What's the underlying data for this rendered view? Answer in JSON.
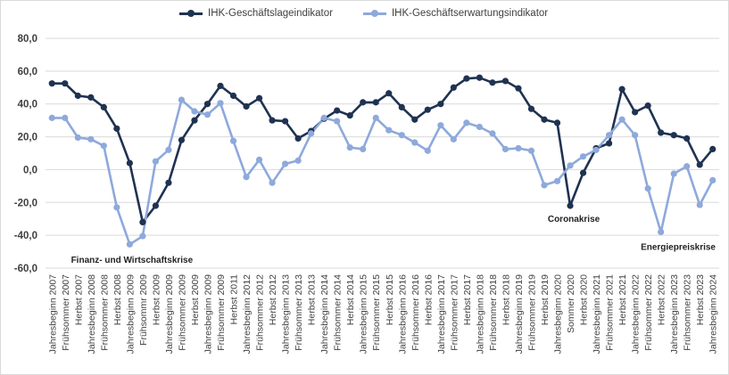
{
  "chart_data": {
    "type": "line",
    "categories": [
      "Jahresbeginn 2007",
      "Frühsommer 2007",
      "Herbst 2007",
      "Jahresbeginn 2008",
      "Frühsommer 2008",
      "Herbst 2008",
      "Jahresbeginn 2009",
      "Frühsommr 2009",
      "Herbst 2009",
      "Jahresbeginn 2009",
      "Frühsommer 2009",
      "Herbst 2009",
      "Jahresbeginn 2009",
      "Frühsommer 2009",
      "Herbst 2011",
      "Jahresbeginn 2012",
      "Frühsommer 2012",
      "Herbst 2012",
      "Jahresbeginn 2013",
      "Frühsommer 2013",
      "Herbst 2013",
      "Jahresbeginn 2014",
      "Frühsommer 2014",
      "Herbst 2014",
      "Jahresbeginn 2015",
      "Frühsommer 2015",
      "Herbst 2015",
      "Jahresbeginn 2016",
      "Frühsommer 2016",
      "Herbst 2016",
      "Jahresbeginn 2017",
      "Frühsommer 2017",
      "Herbst 2017",
      "Jahresbeginn 2018",
      "Frühsommer 2018",
      "Herbst 2018",
      "Jahresbeginn 2019",
      "Frühsommer 2019",
      "Herbst 2019",
      "Jahresbeginn 2020",
      "Sommer 2020",
      "Herbst 2020",
      "Jahresbeginn 2021",
      "Frühsommer 2021",
      "Herbst 2021",
      "Jahresbeginn 2022",
      "Frühsommer 2022",
      "Herbst 2022",
      "Jahresbeginn 2023",
      "Frühsommer 2023",
      "Herbst 2023",
      "Jahresbeginn 2024"
    ],
    "series": [
      {
        "name": "IHK-Geschäftslageindikator",
        "color": "#1f3251",
        "values": [
          52.5,
          52.5,
          45,
          44,
          38,
          25,
          4,
          -32,
          -22,
          -8,
          18,
          30,
          40,
          51,
          45,
          38.5,
          43.5,
          30,
          29.5,
          19,
          23.5,
          31,
          36,
          33,
          41,
          41,
          46.5,
          38,
          30.5,
          36.5,
          40,
          50,
          55.5,
          56,
          53,
          54,
          49.5,
          37,
          30.5,
          28.5,
          -22,
          -2,
          13,
          16,
          49,
          35,
          39,
          22.5,
          21,
          19,
          3,
          12.5
        ]
      },
      {
        "name": "IHK-Geschäftserwartungsindikator",
        "color": "#8ea9db",
        "values": [
          31.5,
          31.5,
          19.5,
          18.5,
          14.5,
          -23,
          -45.5,
          -40.5,
          5,
          12,
          42.5,
          35.5,
          33.5,
          40.5,
          17.5,
          -4.5,
          6,
          -8,
          3.5,
          5.5,
          22,
          31.5,
          29.5,
          13.5,
          12.5,
          31.5,
          24,
          21,
          16.5,
          11.5,
          27,
          18.5,
          28.5,
          26,
          22,
          12.5,
          13,
          11.5,
          -9.5,
          -7,
          2.5,
          8,
          12,
          21,
          30.5,
          21,
          -11.5,
          -38,
          -2.5,
          2,
          -21.5,
          -6.5
        ]
      }
    ],
    "ylim": [
      -60,
      80
    ],
    "yticks": [
      "80,0",
      "60,0",
      "40,0",
      "20,0",
      "0,0",
      "-20,0",
      "-40,0",
      "-60,0"
    ],
    "grid": true,
    "legend_position": "top",
    "annotations": [
      {
        "text": "Finanz- und Wirtschaftskrise",
        "category_index": 7
      },
      {
        "text": "Coronakrise",
        "category_index": 40
      },
      {
        "text": "Energiepreiskrise",
        "category_index": 47
      }
    ]
  }
}
